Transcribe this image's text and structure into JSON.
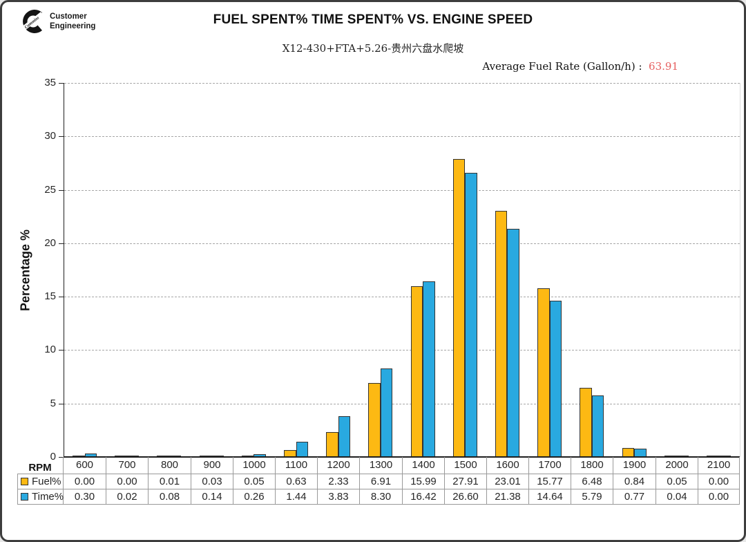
{
  "logo": {
    "brand": "Cummins",
    "line1": "Customer",
    "line2": "Engineering"
  },
  "annotation": {
    "label": "Average Fuel Rate (Gallon/h) :  ",
    "value": "63.91",
    "value_color": "#e66060"
  },
  "chart_data": {
    "type": "bar",
    "title": "FUEL SPENT% TIME SPENT% VS. ENGINE SPEED",
    "subtitle": "X12-430+FTA+5.26-贵州六盘水爬坡",
    "xlabel": "RPM",
    "ylabel": "Percentage %",
    "ylim": [
      0,
      35
    ],
    "ytick_step": 5,
    "grid": "horizontal-dashed",
    "legend_position": "data-table-row-labels",
    "categories": [
      "600",
      "700",
      "800",
      "900",
      "1000",
      "1100",
      "1200",
      "1300",
      "1400",
      "1500",
      "1600",
      "1700",
      "1800",
      "1900",
      "2000",
      "2100"
    ],
    "series": [
      {
        "name": "Fuel%",
        "color": "#FDB913",
        "border_color": "#333333",
        "values": [
          "0.00",
          "0.00",
          "0.01",
          "0.03",
          "0.05",
          "0.63",
          "2.33",
          "6.91",
          "15.99",
          "27.91",
          "23.01",
          "15.77",
          "6.48",
          "0.84",
          "0.05",
          "0.00"
        ]
      },
      {
        "name": "Time%",
        "color": "#29A9E0",
        "border_color": "#333333",
        "values": [
          "0.30",
          "0.02",
          "0.08",
          "0.14",
          "0.26",
          "1.44",
          "3.83",
          "8.30",
          "16.42",
          "26.60",
          "21.38",
          "14.64",
          "5.79",
          "0.77",
          "0.04",
          "0.00"
        ]
      }
    ]
  }
}
